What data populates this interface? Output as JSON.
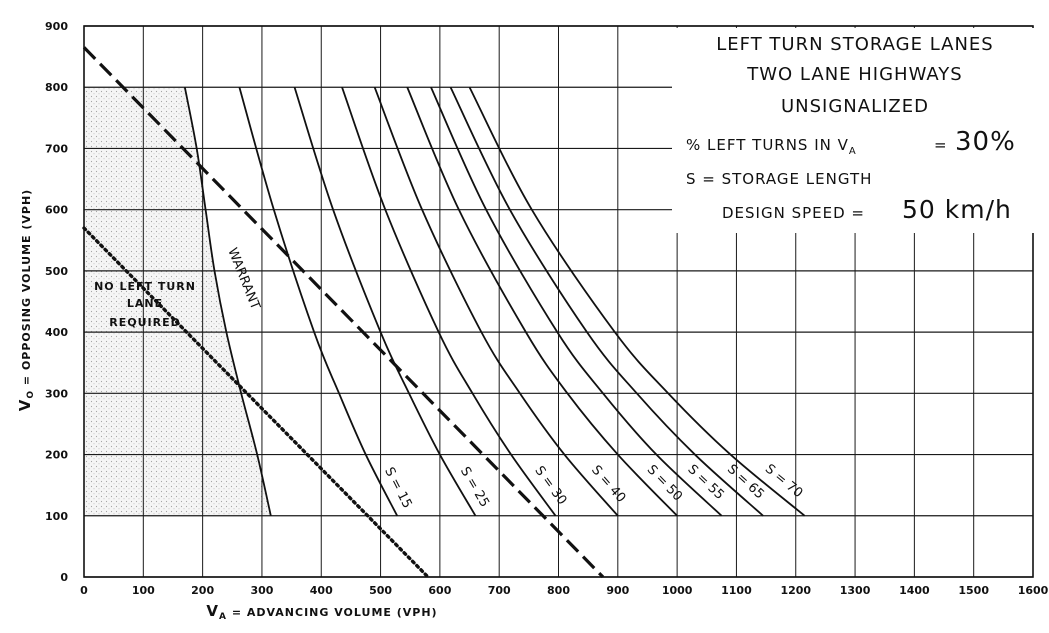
{
  "chart_data": {
    "type": "line",
    "title": "LEFT TURN STORAGE LANES",
    "subtitle_lines": [
      "TWO LANE HIGHWAYS",
      "UNSIGNALIZED"
    ],
    "info": {
      "left_turn_label": "% LEFT TURNS IN V",
      "left_turn_sub": "A",
      "left_turn_eq": "=",
      "left_turn_value": "30%",
      "storage_label": "S = STORAGE LENGTH",
      "speed_label": "DESIGN SPEED =",
      "speed_value": "50 km/h"
    },
    "xlabel_main": "V",
    "xlabel_sub": "A",
    "xlabel_rest": " = ADVANCING VOLUME (VPH)",
    "ylabel_main": "V",
    "ylabel_sub": "O",
    "ylabel_rest": " = OPPOSING VOLUME (VPH)",
    "xlim": [
      0,
      1600
    ],
    "ylim": [
      0,
      900
    ],
    "x_ticks": [
      "0",
      "100",
      "200",
      "300",
      "400",
      "500",
      "600",
      "700",
      "800",
      "900",
      "1000",
      "1100",
      "1200",
      "1300",
      "1400",
      "1500",
      "1600"
    ],
    "y_ticks": [
      "0",
      "100",
      "200",
      "300",
      "400",
      "500",
      "600",
      "700",
      "800",
      "900"
    ],
    "grid": true,
    "region_note": [
      "NO LEFT TURN",
      "LANE",
      "REQUIRED"
    ],
    "warrant_label": "WARRANT",
    "warrant_curve": [
      [
        170,
        800
      ],
      [
        190,
        700
      ],
      [
        205,
        600
      ],
      [
        220,
        500
      ],
      [
        240,
        400
      ],
      [
        265,
        300
      ],
      [
        292,
        200
      ],
      [
        315,
        100
      ]
    ],
    "dashed_line": [
      [
        0,
        865
      ],
      [
        875,
        0
      ]
    ],
    "dotted_line": [
      [
        0,
        570
      ],
      [
        580,
        0
      ]
    ],
    "series": [
      {
        "name": "S = 15",
        "values": [
          [
            262,
            800
          ],
          [
            320,
            600
          ],
          [
            388,
            400
          ],
          [
            430,
            300
          ],
          [
            475,
            200
          ],
          [
            528,
            100
          ]
        ]
      },
      {
        "name": "S = 25",
        "values": [
          [
            355,
            800
          ],
          [
            420,
            600
          ],
          [
            500,
            400
          ],
          [
            548,
            300
          ],
          [
            600,
            200
          ],
          [
            660,
            100
          ]
        ]
      },
      {
        "name": "S = 30",
        "values": [
          [
            435,
            800
          ],
          [
            508,
            600
          ],
          [
            598,
            400
          ],
          [
            655,
            300
          ],
          [
            720,
            200
          ],
          [
            795,
            100
          ]
        ]
      },
      {
        "name": "S = 40",
        "values": [
          [
            490,
            800
          ],
          [
            570,
            600
          ],
          [
            670,
            400
          ],
          [
            735,
            300
          ],
          [
            810,
            200
          ],
          [
            900,
            100
          ]
        ]
      },
      {
        "name": "S = 50",
        "values": [
          [
            545,
            800
          ],
          [
            632,
            600
          ],
          [
            745,
            400
          ],
          [
            815,
            300
          ],
          [
            900,
            200
          ],
          [
            1000,
            100
          ]
        ]
      },
      {
        "name": "S = 55",
        "values": [
          [
            585,
            800
          ],
          [
            678,
            600
          ],
          [
            798,
            400
          ],
          [
            875,
            300
          ],
          [
            965,
            200
          ],
          [
            1075,
            100
          ]
        ]
      },
      {
        "name": "S = 65",
        "values": [
          [
            618,
            800
          ],
          [
            718,
            600
          ],
          [
            848,
            400
          ],
          [
            932,
            300
          ],
          [
            1030,
            200
          ],
          [
            1145,
            100
          ]
        ]
      },
      {
        "name": "S = 70",
        "values": [
          [
            650,
            800
          ],
          [
            755,
            600
          ],
          [
            895,
            400
          ],
          [
            985,
            300
          ],
          [
            1090,
            200
          ],
          [
            1215,
            100
          ]
        ]
      }
    ]
  }
}
